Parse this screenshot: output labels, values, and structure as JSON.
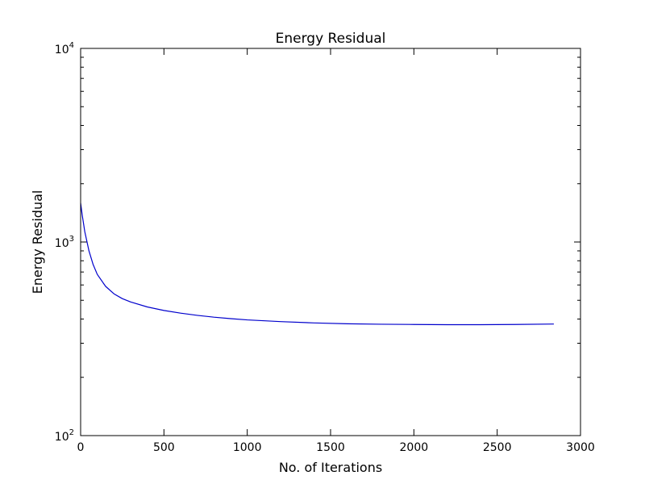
{
  "chart_data": {
    "type": "line",
    "title": "Energy Residual",
    "xlabel": "No. of Iterations",
    "ylabel": "Energy Residual",
    "xlim": [
      0,
      3000
    ],
    "ylim": [
      100,
      10000
    ],
    "yscale": "log",
    "grid": false,
    "x_ticks": [
      0,
      500,
      1000,
      1500,
      2000,
      2500,
      3000
    ],
    "y_ticks": [
      {
        "value": 100,
        "base": "10",
        "exp": "2"
      },
      {
        "value": 1000,
        "base": "10",
        "exp": "3"
      },
      {
        "value": 10000,
        "base": "10",
        "exp": "4"
      }
    ],
    "series": [
      {
        "color": "#0000cc",
        "x": [
          0,
          10,
          25,
          50,
          75,
          100,
          150,
          200,
          250,
          300,
          400,
          500,
          600,
          700,
          800,
          900,
          1000,
          1200,
          1400,
          1600,
          1800,
          2000,
          2200,
          2400,
          2600,
          2840
        ],
        "y": [
          1590,
          1370,
          1130,
          900,
          765,
          680,
          590,
          540,
          510,
          490,
          462,
          443,
          429,
          418,
          409,
          402,
          396,
          388,
          382,
          378,
          376,
          375,
          374,
          374,
          375,
          377
        ]
      }
    ]
  }
}
